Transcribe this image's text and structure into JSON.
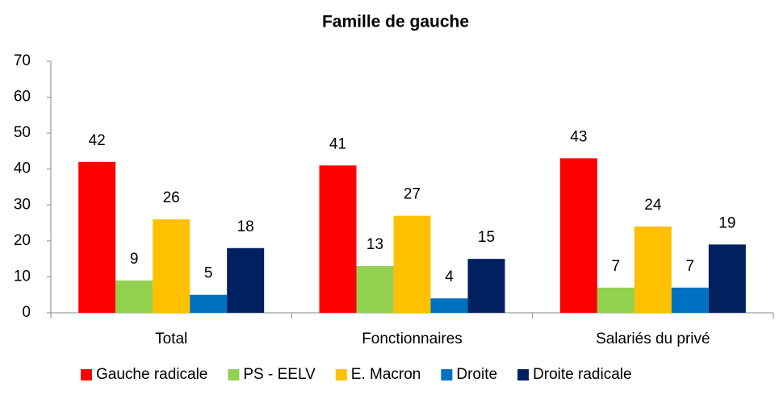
{
  "chart_data": {
    "type": "bar",
    "title": "Famille de gauche",
    "categories": [
      "Total",
      "Fonctionnaires",
      "Salariés du privé"
    ],
    "series": [
      {
        "name": "Gauche radicale",
        "color": "#ff0000",
        "values": [
          42,
          41,
          43
        ]
      },
      {
        "name": "PS - EELV",
        "color": "#92d050",
        "values": [
          9,
          13,
          7
        ]
      },
      {
        "name": "E. Macron",
        "color": "#ffc000",
        "values": [
          26,
          27,
          24
        ]
      },
      {
        "name": "Droite",
        "color": "#0070c0",
        "values": [
          5,
          4,
          7
        ]
      },
      {
        "name": "Droite radicale",
        "color": "#002060",
        "values": [
          18,
          15,
          19
        ]
      }
    ],
    "ylim": [
      0,
      70
    ],
    "yticks": [
      0,
      10,
      20,
      30,
      40,
      50,
      60,
      70
    ],
    "grid": false,
    "legend": "bottom"
  }
}
